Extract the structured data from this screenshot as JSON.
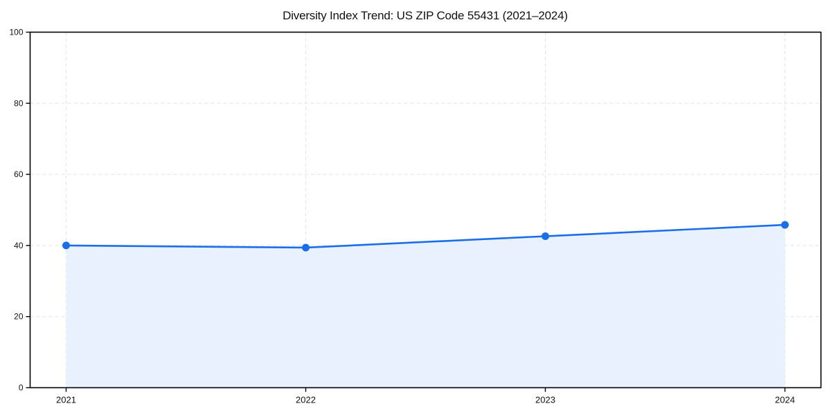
{
  "figure": {
    "background": "#ffffff"
  },
  "chart_data": {
    "type": "area",
    "title": "Diversity Index Trend: US ZIP Code 55431 (2021–2024)",
    "categories": [
      "2021",
      "2022",
      "2023",
      "2024"
    ],
    "series": [
      {
        "name": "Diversity Index",
        "values": [
          40.0,
          39.4,
          42.6,
          45.8
        ]
      }
    ],
    "xlabel": "",
    "ylabel": "",
    "ylim": [
      0,
      100
    ],
    "yticks": [
      0,
      20,
      40,
      60,
      80,
      100
    ],
    "ytick_labels": [
      "0",
      "20",
      "40",
      "60",
      "80",
      "100"
    ],
    "grid": "dashed",
    "legend_position": "none",
    "marker": "circle",
    "colors": {
      "line": "#1a6ee8",
      "marker": "#1a6ee8",
      "fill": "#e8f1fd",
      "grid": "#e3e3e3",
      "spine": "#000000",
      "tick": "#000000",
      "text": "#111111"
    }
  }
}
